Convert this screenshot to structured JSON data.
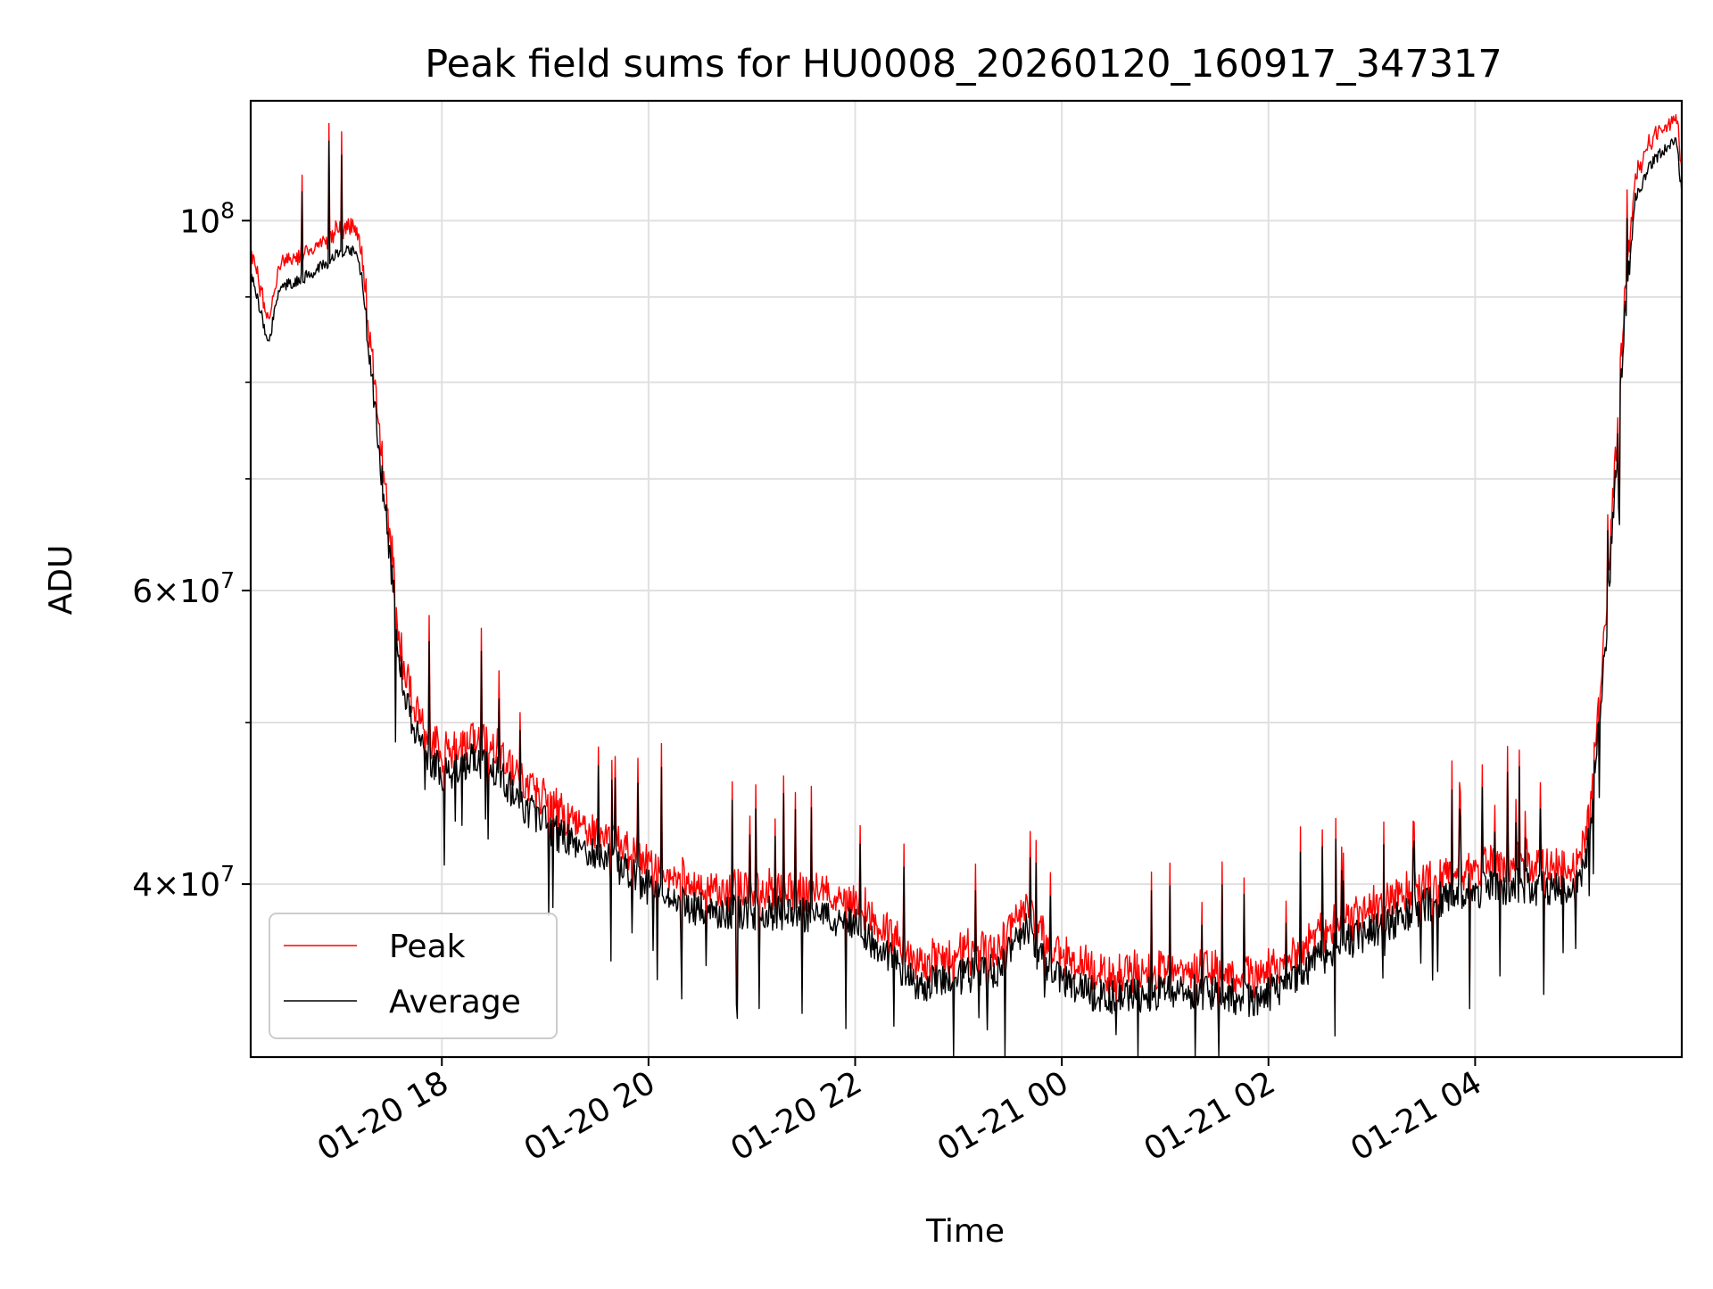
{
  "chart_data": {
    "type": "line",
    "title": "Peak field sums for HU0008_20260120_160917_347317",
    "xlabel": "Time",
    "ylabel": "ADU",
    "yscale": "log",
    "ylim": [
      31500000,
      118000000
    ],
    "xlim_hours": [
      16.15,
      6.0
    ],
    "grid": true,
    "legend_position": "lower-left",
    "x_ticks": [
      {
        "hour": 18,
        "label": "01-20 18"
      },
      {
        "hour": 20,
        "label": "01-20 20"
      },
      {
        "hour": 22,
        "label": "01-20 22"
      },
      {
        "hour": 24,
        "label": "01-21 00"
      },
      {
        "hour": 26,
        "label": "01-21 02"
      },
      {
        "hour": 28,
        "label": "01-21 04"
      }
    ],
    "y_major_ticks": [
      {
        "value": 40000000,
        "base": "4",
        "exp": "7"
      },
      {
        "value": 60000000,
        "base": "6",
        "exp": "7"
      },
      {
        "value": 100000000,
        "base": "10",
        "exp": "8"
      }
    ],
    "y_minor_gridlines": [
      50000000,
      70000000,
      80000000,
      90000000
    ],
    "times_symbol": "×",
    "series": [
      {
        "name": "Peak",
        "color": "#ff0000",
        "offset_ratio": 1.022
      },
      {
        "name": "Average",
        "color": "#000000",
        "offset_ratio": 1.0
      }
    ],
    "envelope": [
      [
        16.15,
        93000000
      ],
      [
        16.25,
        88000000
      ],
      [
        16.32,
        84000000
      ],
      [
        16.42,
        91000000
      ],
      [
        16.6,
        92000000
      ],
      [
        16.8,
        93500000
      ],
      [
        17.0,
        95500000
      ],
      [
        17.15,
        96000000
      ],
      [
        17.22,
        93000000
      ],
      [
        17.3,
        84000000
      ],
      [
        17.4,
        72000000
      ],
      [
        17.5,
        63000000
      ],
      [
        17.58,
        55500000
      ],
      [
        17.65,
        51500000
      ],
      [
        17.75,
        49500000
      ],
      [
        17.85,
        48000000
      ],
      [
        18.0,
        46500000
      ],
      [
        18.3,
        47500000
      ],
      [
        18.5,
        47000000
      ],
      [
        18.8,
        44500000
      ],
      [
        19.2,
        42500000
      ],
      [
        19.6,
        41500000
      ],
      [
        20.0,
        39800000
      ],
      [
        20.5,
        38600000
      ],
      [
        21.0,
        38500000
      ],
      [
        21.5,
        38300000
      ],
      [
        22.0,
        38000000
      ],
      [
        22.3,
        36200000
      ],
      [
        22.6,
        34800000
      ],
      [
        23.0,
        35200000
      ],
      [
        23.4,
        35600000
      ],
      [
        23.65,
        37800000
      ],
      [
        23.8,
        36000000
      ],
      [
        24.2,
        34500000
      ],
      [
        24.5,
        34200000
      ],
      [
        25.0,
        34500000
      ],
      [
        25.5,
        34400000
      ],
      [
        25.85,
        34100000
      ],
      [
        26.2,
        34800000
      ],
      [
        26.6,
        36500000
      ],
      [
        27.0,
        37500000
      ],
      [
        27.4,
        38500000
      ],
      [
        27.8,
        39500000
      ],
      [
        28.2,
        39800000
      ],
      [
        28.5,
        39900000
      ],
      [
        28.9,
        39600000
      ],
      [
        29.05,
        40500000
      ],
      [
        29.12,
        44000000
      ],
      [
        29.2,
        50000000
      ],
      [
        29.28,
        58000000
      ],
      [
        29.36,
        70000000
      ],
      [
        29.45,
        88000000
      ],
      [
        29.55,
        103000000
      ],
      [
        29.7,
        108000000
      ],
      [
        29.85,
        110500000
      ],
      [
        29.95,
        111500000
      ],
      [
        30.0,
        104000000
      ]
    ]
  }
}
